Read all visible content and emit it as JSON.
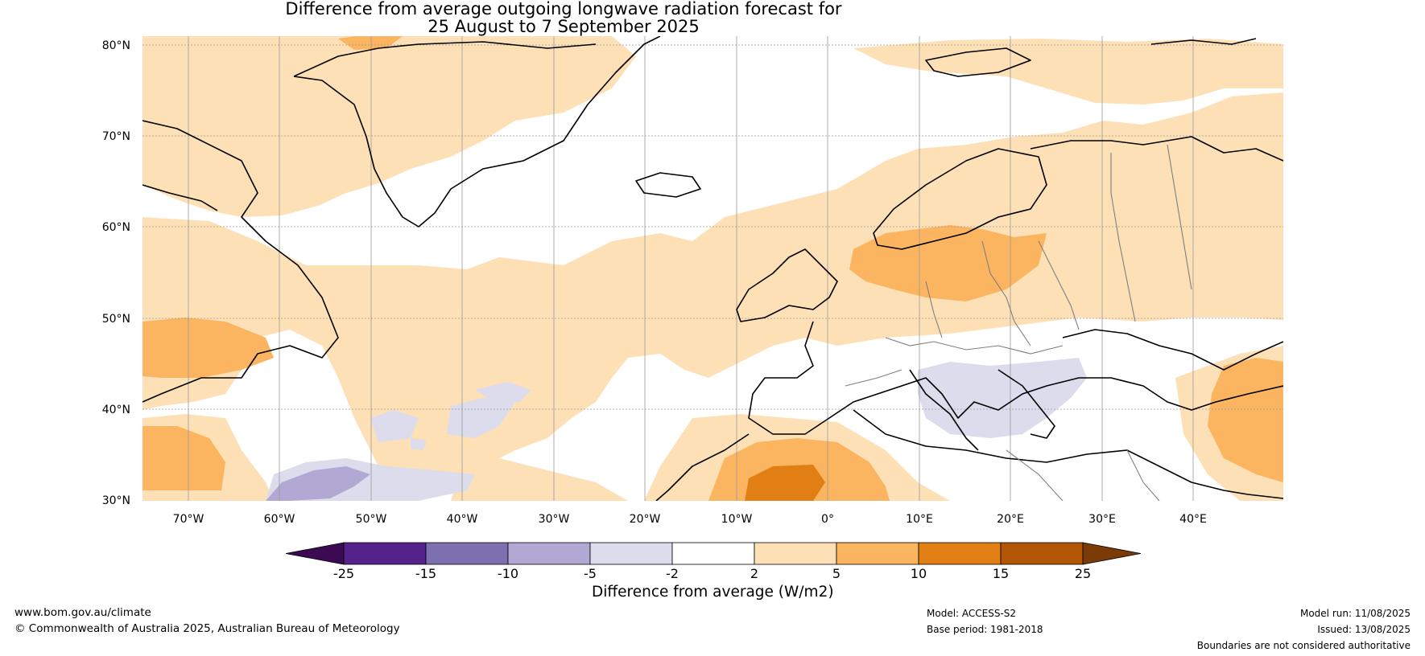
{
  "title_line1": "Difference from average outgoing longwave radiation forecast for",
  "title_line2": "25 August to 7 September 2025",
  "lat_labels": [
    "80°N",
    "70°N",
    "60°N",
    "50°N",
    "40°N",
    "30°N"
  ],
  "lon_labels": [
    "70°W",
    "60°W",
    "50°W",
    "40°W",
    "30°W",
    "20°W",
    "10°W",
    "0°",
    "10°E",
    "20°E",
    "30°E",
    "40°E"
  ],
  "colorbar": {
    "title": "Difference from average (W/m2)",
    "tick_labels": [
      "-25",
      "-15",
      "-10",
      "-5",
      "-2",
      "2",
      "5",
      "10",
      "15",
      "25"
    ],
    "colors": [
      "#3b0a53",
      "#55218a",
      "#7d70b0",
      "#b1a9d3",
      "#dcdcec",
      "#ffffff",
      "#fde0b6",
      "#fbb45f",
      "#e17f14",
      "#b25506",
      "#7b3b07"
    ]
  },
  "footer": {
    "url": "www.bom.gov.au/climate",
    "copyright": "© Commonwealth of Australia 2025, Australian Bureau of Meteorology",
    "model": "Model: ACCESS-S2",
    "base_period": "Base period: 1981-2018",
    "model_run": "Model run: 11/08/2025",
    "issued": "Issued: 13/08/2025",
    "disclaimer": "Boundaries are not considered authoritative"
  }
}
